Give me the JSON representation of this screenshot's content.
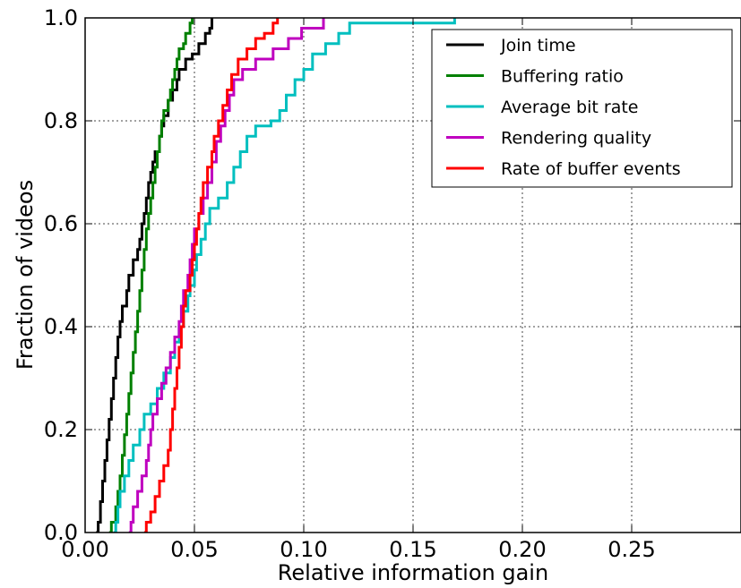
{
  "chart_data": {
    "type": "line",
    "xlabel": "Relative information gain",
    "ylabel": "Fraction of videos",
    "xlim": [
      0,
      0.3
    ],
    "ylim": [
      0,
      1.0
    ],
    "xticks": [
      0.0,
      0.05,
      0.1,
      0.15,
      0.2,
      0.25
    ],
    "xtick_labels": [
      "0.00",
      "0.05",
      "0.10",
      "0.15",
      "0.20",
      "0.25"
    ],
    "yticks": [
      0.0,
      0.2,
      0.4,
      0.6,
      0.8,
      1.0
    ],
    "ytick_labels": [
      "0.0",
      "0.2",
      "0.4",
      "0.6",
      "0.8",
      "1.0"
    ],
    "grid": true,
    "legend_position": "top-right",
    "series": [
      {
        "name": "Join time",
        "color": "#000000",
        "points": [
          [
            0.005,
            0.0
          ],
          [
            0.006,
            0.02
          ],
          [
            0.007,
            0.06
          ],
          [
            0.008,
            0.1
          ],
          [
            0.009,
            0.14
          ],
          [
            0.01,
            0.18
          ],
          [
            0.011,
            0.22
          ],
          [
            0.012,
            0.26
          ],
          [
            0.013,
            0.3
          ],
          [
            0.014,
            0.34
          ],
          [
            0.015,
            0.38
          ],
          [
            0.016,
            0.41
          ],
          [
            0.017,
            0.44
          ],
          [
            0.019,
            0.47
          ],
          [
            0.02,
            0.5
          ],
          [
            0.022,
            0.53
          ],
          [
            0.024,
            0.55
          ],
          [
            0.025,
            0.57
          ],
          [
            0.026,
            0.6
          ],
          [
            0.027,
            0.62
          ],
          [
            0.028,
            0.65
          ],
          [
            0.029,
            0.68
          ],
          [
            0.03,
            0.7
          ],
          [
            0.031,
            0.72
          ],
          [
            0.032,
            0.74
          ],
          [
            0.034,
            0.77
          ],
          [
            0.035,
            0.79
          ],
          [
            0.036,
            0.81
          ],
          [
            0.038,
            0.84
          ],
          [
            0.04,
            0.86
          ],
          [
            0.042,
            0.88
          ],
          [
            0.043,
            0.9
          ],
          [
            0.046,
            0.92
          ],
          [
            0.049,
            0.93
          ],
          [
            0.052,
            0.95
          ],
          [
            0.055,
            0.97
          ],
          [
            0.057,
            0.98
          ],
          [
            0.058,
            1.0
          ]
        ]
      },
      {
        "name": "Buffering ratio",
        "color": "#008000",
        "points": [
          [
            0.011,
            0.0
          ],
          [
            0.012,
            0.02
          ],
          [
            0.014,
            0.05
          ],
          [
            0.015,
            0.08
          ],
          [
            0.016,
            0.11
          ],
          [
            0.017,
            0.15
          ],
          [
            0.018,
            0.19
          ],
          [
            0.019,
            0.23
          ],
          [
            0.02,
            0.27
          ],
          [
            0.021,
            0.31
          ],
          [
            0.022,
            0.35
          ],
          [
            0.023,
            0.39
          ],
          [
            0.024,
            0.43
          ],
          [
            0.025,
            0.47
          ],
          [
            0.026,
            0.51
          ],
          [
            0.027,
            0.55
          ],
          [
            0.028,
            0.59
          ],
          [
            0.029,
            0.62
          ],
          [
            0.03,
            0.65
          ],
          [
            0.031,
            0.68
          ],
          [
            0.032,
            0.71
          ],
          [
            0.033,
            0.74
          ],
          [
            0.034,
            0.77
          ],
          [
            0.035,
            0.8
          ],
          [
            0.036,
            0.82
          ],
          [
            0.038,
            0.84
          ],
          [
            0.039,
            0.86
          ],
          [
            0.04,
            0.88
          ],
          [
            0.041,
            0.9
          ],
          [
            0.042,
            0.92
          ],
          [
            0.043,
            0.94
          ],
          [
            0.045,
            0.95
          ],
          [
            0.046,
            0.97
          ],
          [
            0.048,
            0.99
          ],
          [
            0.049,
            1.0
          ]
        ]
      },
      {
        "name": "Average bit rate",
        "color": "#00BFBF",
        "points": [
          [
            0.013,
            0.0
          ],
          [
            0.014,
            0.02
          ],
          [
            0.015,
            0.05
          ],
          [
            0.016,
            0.08
          ],
          [
            0.018,
            0.11
          ],
          [
            0.02,
            0.14
          ],
          [
            0.022,
            0.17
          ],
          [
            0.025,
            0.2
          ],
          [
            0.027,
            0.23
          ],
          [
            0.03,
            0.25
          ],
          [
            0.033,
            0.28
          ],
          [
            0.036,
            0.31
          ],
          [
            0.039,
            0.34
          ],
          [
            0.041,
            0.37
          ],
          [
            0.043,
            0.4
          ],
          [
            0.045,
            0.43
          ],
          [
            0.047,
            0.46
          ],
          [
            0.048,
            0.48
          ],
          [
            0.05,
            0.51
          ],
          [
            0.051,
            0.54
          ],
          [
            0.053,
            0.57
          ],
          [
            0.055,
            0.6
          ],
          [
            0.057,
            0.63
          ],
          [
            0.061,
            0.65
          ],
          [
            0.065,
            0.68
          ],
          [
            0.068,
            0.71
          ],
          [
            0.071,
            0.74
          ],
          [
            0.074,
            0.77
          ],
          [
            0.078,
            0.79
          ],
          [
            0.085,
            0.8
          ],
          [
            0.089,
            0.82
          ],
          [
            0.092,
            0.85
          ],
          [
            0.096,
            0.88
          ],
          [
            0.1,
            0.9
          ],
          [
            0.104,
            0.93
          ],
          [
            0.11,
            0.95
          ],
          [
            0.116,
            0.97
          ],
          [
            0.121,
            0.99
          ],
          [
            0.169,
            1.0
          ]
        ]
      },
      {
        "name": "Rendering quality",
        "color": "#BF00BF",
        "points": [
          [
            0.02,
            0.0
          ],
          [
            0.021,
            0.02
          ],
          [
            0.022,
            0.05
          ],
          [
            0.024,
            0.08
          ],
          [
            0.026,
            0.11
          ],
          [
            0.028,
            0.14
          ],
          [
            0.029,
            0.17
          ],
          [
            0.03,
            0.2
          ],
          [
            0.031,
            0.23
          ],
          [
            0.033,
            0.26
          ],
          [
            0.035,
            0.29
          ],
          [
            0.037,
            0.32
          ],
          [
            0.039,
            0.35
          ],
          [
            0.041,
            0.38
          ],
          [
            0.043,
            0.41
          ],
          [
            0.044,
            0.44
          ],
          [
            0.045,
            0.47
          ],
          [
            0.047,
            0.5
          ],
          [
            0.048,
            0.53
          ],
          [
            0.049,
            0.56
          ],
          [
            0.05,
            0.59
          ],
          [
            0.052,
            0.62
          ],
          [
            0.054,
            0.65
          ],
          [
            0.056,
            0.68
          ],
          [
            0.058,
            0.72
          ],
          [
            0.06,
            0.76
          ],
          [
            0.062,
            0.79
          ],
          [
            0.064,
            0.82
          ],
          [
            0.066,
            0.85
          ],
          [
            0.068,
            0.88
          ],
          [
            0.072,
            0.9
          ],
          [
            0.078,
            0.92
          ],
          [
            0.086,
            0.94
          ],
          [
            0.093,
            0.96
          ],
          [
            0.099,
            0.98
          ],
          [
            0.109,
            1.0
          ]
        ]
      },
      {
        "name": "Rate of buffer events",
        "color": "#FF0000",
        "points": [
          [
            0.027,
            0.0
          ],
          [
            0.028,
            0.02
          ],
          [
            0.03,
            0.04
          ],
          [
            0.032,
            0.07
          ],
          [
            0.034,
            0.1
          ],
          [
            0.036,
            0.13
          ],
          [
            0.038,
            0.16
          ],
          [
            0.039,
            0.2
          ],
          [
            0.04,
            0.24
          ],
          [
            0.041,
            0.28
          ],
          [
            0.042,
            0.32
          ],
          [
            0.043,
            0.36
          ],
          [
            0.044,
            0.4
          ],
          [
            0.045,
            0.44
          ],
          [
            0.046,
            0.47
          ],
          [
            0.048,
            0.5
          ],
          [
            0.049,
            0.53
          ],
          [
            0.05,
            0.56
          ],
          [
            0.051,
            0.59
          ],
          [
            0.052,
            0.62
          ],
          [
            0.053,
            0.65
          ],
          [
            0.054,
            0.68
          ],
          [
            0.056,
            0.71
          ],
          [
            0.058,
            0.74
          ],
          [
            0.059,
            0.77
          ],
          [
            0.061,
            0.8
          ],
          [
            0.063,
            0.83
          ],
          [
            0.065,
            0.86
          ],
          [
            0.067,
            0.89
          ],
          [
            0.07,
            0.92
          ],
          [
            0.074,
            0.94
          ],
          [
            0.078,
            0.96
          ],
          [
            0.082,
            0.97
          ],
          [
            0.086,
            0.99
          ],
          [
            0.088,
            1.0
          ]
        ]
      }
    ]
  }
}
